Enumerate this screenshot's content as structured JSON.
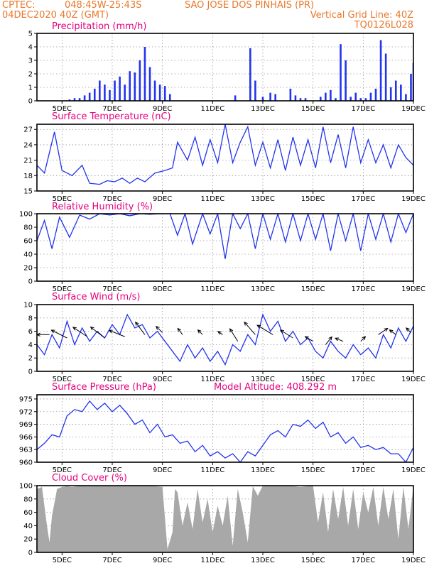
{
  "header": {
    "source": "CPTEC:",
    "coords": "048:45W-25:43S",
    "location": "SAO JOSE DOS PINHAIS (PR)",
    "date": "04DEC2020 40Z (GMT)",
    "grid_note": "Vertical Grid Line: 40Z",
    "code": "TQ0126L028"
  },
  "colors": {
    "header": "#e8782a",
    "title": "#e6007e",
    "line": "#2233ee",
    "bar": "#2233ee",
    "cloud": "#a8a8a8"
  },
  "chart_data": [
    {
      "type": "bar",
      "title": "Precipitation (mm/h)",
      "x_tick_labels": [
        "5DEC",
        "7DEC",
        "9DEC",
        "11DEC",
        "13DEC",
        "15DEC",
        "17DEC",
        "19DEC"
      ],
      "ylim": [
        0,
        5
      ],
      "y_ticks": [
        0,
        1,
        2,
        3,
        4,
        5
      ],
      "x_days": [
        5.3,
        5.5,
        5.7,
        5.9,
        6.1,
        6.3,
        6.5,
        6.7,
        6.9,
        7.1,
        7.3,
        7.5,
        7.7,
        7.9,
        8.1,
        8.3,
        8.5,
        8.7,
        8.9,
        9.1,
        9.3,
        11.9,
        12.5,
        12.7,
        13.0,
        13.3,
        13.5,
        14.1,
        14.3,
        14.5,
        14.7,
        15.3,
        15.5,
        15.7,
        15.9,
        16.1,
        16.3,
        16.5,
        16.7,
        16.9,
        17.1,
        17.3,
        17.5,
        17.7,
        17.9,
        18.1,
        18.3,
        18.5,
        18.7,
        18.9,
        19.0
      ],
      "values": [
        0.1,
        0.2,
        0.2,
        0.4,
        0.6,
        0.9,
        1.5,
        1.2,
        0.8,
        1.5,
        1.8,
        1.2,
        2.2,
        2.1,
        3.0,
        4.0,
        2.5,
        1.5,
        1.2,
        1.1,
        0.5,
        0.4,
        3.9,
        1.5,
        0.3,
        0.6,
        0.5,
        0.9,
        0.4,
        0.2,
        0.2,
        0.3,
        0.6,
        0.8,
        0.2,
        4.2,
        3.0,
        0.3,
        0.6,
        0.2,
        0.2,
        0.6,
        0.9,
        4.5,
        3.5,
        1.0,
        1.5,
        1.2,
        0.5,
        2.0,
        2.8
      ],
      "grid": true
    },
    {
      "type": "line",
      "title": "Surface Temperature (nC)",
      "x_tick_labels": [
        "5DEC",
        "7DEC",
        "9DEC",
        "11DEC",
        "13DEC",
        "15DEC",
        "17DEC",
        "19DEC"
      ],
      "ylim": [
        15,
        28
      ],
      "y_ticks": [
        15,
        18,
        21,
        24,
        27
      ],
      "x": [
        4.0,
        4.3,
        4.7,
        5.0,
        5.4,
        5.8,
        6.1,
        6.5,
        6.8,
        7.1,
        7.4,
        7.7,
        8.0,
        8.3,
        8.7,
        9.1,
        9.4,
        9.6,
        10.0,
        10.3,
        10.6,
        10.9,
        11.2,
        11.5,
        11.8,
        12.1,
        12.4,
        12.7,
        13.0,
        13.3,
        13.6,
        13.9,
        14.2,
        14.5,
        14.8,
        15.1,
        15.4,
        15.7,
        16.0,
        16.3,
        16.6,
        16.9,
        17.2,
        17.5,
        17.8,
        18.1,
        18.4,
        18.7,
        19.0
      ],
      "y": [
        20.0,
        18.5,
        26.5,
        19.0,
        18.0,
        20.0,
        16.5,
        16.3,
        17.0,
        16.8,
        17.5,
        16.5,
        17.5,
        16.8,
        18.5,
        19.0,
        19.5,
        24.5,
        21.0,
        25.5,
        20.0,
        25.0,
        20.5,
        28.0,
        20.5,
        24.5,
        27.5,
        20.0,
        24.5,
        19.5,
        25.0,
        19.0,
        25.5,
        20.0,
        25.0,
        19.5,
        27.5,
        20.5,
        26.0,
        19.5,
        27.5,
        20.5,
        25.0,
        20.5,
        24.0,
        19.5,
        24.0,
        21.5,
        20.0
      ],
      "grid": true
    },
    {
      "type": "line",
      "title": "Relative Humidity (%)",
      "x_tick_labels": [
        "5DEC",
        "7DEC",
        "9DEC",
        "11DEC",
        "13DEC",
        "15DEC",
        "17DEC",
        "19DEC"
      ],
      "ylim": [
        0,
        100
      ],
      "y_ticks": [
        0,
        20,
        40,
        60,
        80,
        100
      ],
      "x": [
        4.0,
        4.3,
        4.6,
        4.9,
        5.3,
        5.7,
        6.1,
        6.5,
        6.9,
        7.3,
        7.7,
        8.1,
        8.5,
        8.9,
        9.3,
        9.6,
        9.9,
        10.2,
        10.6,
        10.9,
        11.2,
        11.5,
        11.8,
        12.1,
        12.4,
        12.7,
        13.0,
        13.3,
        13.6,
        13.9,
        14.2,
        14.5,
        14.8,
        15.1,
        15.4,
        15.7,
        16.0,
        16.3,
        16.6,
        16.9,
        17.2,
        17.5,
        17.8,
        18.1,
        18.4,
        18.7,
        19.0
      ],
      "y": [
        60,
        90,
        48,
        95,
        65,
        98,
        92,
        100,
        98,
        100,
        97,
        100,
        99,
        100,
        100,
        68,
        100,
        55,
        100,
        70,
        100,
        33,
        100,
        78,
        100,
        48,
        100,
        62,
        100,
        58,
        100,
        60,
        100,
        62,
        100,
        45,
        100,
        60,
        100,
        45,
        100,
        62,
        100,
        58,
        100,
        72,
        100
      ],
      "grid": true
    },
    {
      "type": "line",
      "title": "Surface Wind (m/s)",
      "x_tick_labels": [
        "5DEC",
        "7DEC",
        "9DEC",
        "11DEC",
        "13DEC",
        "15DEC",
        "17DEC",
        "19DEC"
      ],
      "ylim": [
        0,
        10
      ],
      "y_ticks": [
        0,
        2,
        4,
        6,
        8,
        10
      ],
      "x": [
        4.0,
        4.3,
        4.6,
        4.9,
        5.2,
        5.5,
        5.8,
        6.1,
        6.4,
        6.7,
        7.0,
        7.3,
        7.6,
        7.9,
        8.2,
        8.5,
        8.8,
        9.1,
        9.4,
        9.7,
        10.0,
        10.3,
        10.6,
        10.9,
        11.2,
        11.5,
        11.8,
        12.1,
        12.4,
        12.7,
        13.0,
        13.3,
        13.6,
        13.9,
        14.2,
        14.5,
        14.8,
        15.1,
        15.4,
        15.7,
        16.0,
        16.3,
        16.6,
        16.9,
        17.2,
        17.5,
        17.8,
        18.1,
        18.4,
        18.7,
        19.0
      ],
      "y": [
        4.0,
        2.5,
        5.5,
        3.5,
        7.5,
        4.0,
        6.5,
        4.5,
        6.0,
        5.0,
        7.0,
        5.5,
        8.5,
        6.5,
        7.0,
        5.0,
        6.0,
        4.5,
        3.0,
        1.5,
        4.0,
        2.0,
        3.5,
        1.5,
        3.0,
        1.0,
        4.0,
        3.0,
        5.5,
        4.0,
        8.5,
        6.0,
        7.5,
        4.5,
        6.0,
        4.0,
        5.0,
        3.0,
        2.0,
        4.5,
        3.0,
        2.0,
        4.0,
        2.5,
        3.5,
        2.0,
        5.5,
        3.5,
        6.5,
        4.5,
        6.8
      ],
      "arrows": [
        {
          "x": 4.5,
          "y": 5.5,
          "u": -0.8,
          "v": 0.0
        },
        {
          "x": 5.2,
          "y": 5.0,
          "u": -1.0,
          "v": 0.5
        },
        {
          "x": 6.0,
          "y": 5.2,
          "u": -0.9,
          "v": 0.6
        },
        {
          "x": 6.7,
          "y": 5.0,
          "u": -0.9,
          "v": 0.7
        },
        {
          "x": 7.5,
          "y": 5.2,
          "u": -1.0,
          "v": 0.4
        },
        {
          "x": 8.3,
          "y": 5.5,
          "u": -0.6,
          "v": 0.8
        },
        {
          "x": 9.0,
          "y": 5.8,
          "u": -0.4,
          "v": 0.4
        },
        {
          "x": 9.8,
          "y": 5.5,
          "u": -0.3,
          "v": 0.4
        },
        {
          "x": 10.6,
          "y": 5.5,
          "u": -0.3,
          "v": 0.3
        },
        {
          "x": 11.4,
          "y": 5.5,
          "u": -0.3,
          "v": 0.2
        },
        {
          "x": 12.0,
          "y": 4.5,
          "u": -0.5,
          "v": 0.8
        },
        {
          "x": 12.7,
          "y": 5.5,
          "u": -0.7,
          "v": 0.8
        },
        {
          "x": 13.4,
          "y": 5.5,
          "u": -1.0,
          "v": 0.6
        },
        {
          "x": 14.2,
          "y": 5.0,
          "u": -0.8,
          "v": 0.5
        },
        {
          "x": 15.0,
          "y": 4.5,
          "u": -0.5,
          "v": 0.3
        },
        {
          "x": 15.5,
          "y": 4.0,
          "u": 0.4,
          "v": 0.5
        },
        {
          "x": 16.2,
          "y": 4.5,
          "u": -0.5,
          "v": 0.2
        },
        {
          "x": 16.9,
          "y": 4.5,
          "u": 0.3,
          "v": 0.3
        },
        {
          "x": 17.6,
          "y": 5.5,
          "u": 0.6,
          "v": 0.4
        },
        {
          "x": 18.3,
          "y": 5.5,
          "u": -0.4,
          "v": 0.3
        },
        {
          "x": 18.9,
          "y": 5.8,
          "u": -0.3,
          "v": 0.3
        }
      ],
      "grid": true
    },
    {
      "type": "line",
      "title": "Surface Pressure (hPa)",
      "annotation": "Model Altitude: 408.292 m",
      "x_tick_labels": [
        "5DEC",
        "7DEC",
        "9DEC",
        "11DEC",
        "13DEC",
        "15DEC",
        "17DEC",
        "19DEC"
      ],
      "ylim": [
        960,
        976
      ],
      "y_ticks": [
        960,
        963,
        966,
        969,
        972,
        975
      ],
      "x": [
        4.0,
        4.3,
        4.6,
        4.9,
        5.2,
        5.5,
        5.8,
        6.1,
        6.4,
        6.7,
        7.0,
        7.3,
        7.6,
        7.9,
        8.2,
        8.5,
        8.8,
        9.1,
        9.4,
        9.7,
        10.0,
        10.3,
        10.6,
        10.9,
        11.2,
        11.5,
        11.8,
        12.1,
        12.4,
        12.7,
        13.0,
        13.3,
        13.6,
        13.9,
        14.2,
        14.5,
        14.8,
        15.1,
        15.4,
        15.7,
        16.0,
        16.3,
        16.6,
        16.9,
        17.2,
        17.5,
        17.8,
        18.1,
        18.4,
        18.7,
        19.0
      ],
      "y": [
        963.0,
        964.5,
        966.5,
        966.0,
        971.0,
        972.5,
        972.0,
        974.5,
        972.5,
        974.0,
        972.0,
        973.5,
        971.5,
        969.0,
        970.0,
        967.0,
        969.0,
        966.0,
        966.5,
        964.5,
        965.0,
        962.5,
        964.0,
        961.5,
        962.5,
        961.0,
        962.0,
        960.0,
        962.5,
        961.5,
        964.0,
        966.5,
        967.5,
        966.0,
        969.0,
        968.5,
        970.0,
        968.0,
        969.5,
        966.0,
        967.0,
        964.5,
        966.0,
        963.5,
        964.0,
        963.0,
        963.5,
        962.0,
        962.0,
        960.0,
        963.5
      ],
      "grid": true
    },
    {
      "type": "area",
      "title": "Cloud Cover (%)",
      "x_tick_labels": [
        "5DEC",
        "7DEC",
        "9DEC",
        "11DEC",
        "13DEC",
        "15DEC",
        "17DEC",
        "19DEC"
      ],
      "ylim": [
        0,
        100
      ],
      "y_ticks": [
        0,
        20,
        40,
        60,
        80,
        100
      ],
      "x": [
        4.0,
        4.2,
        4.4,
        4.5,
        4.6,
        4.8,
        5.0,
        5.2,
        5.4,
        5.6,
        5.8,
        6.0,
        6.5,
        7.0,
        7.5,
        8.0,
        8.5,
        9.0,
        9.2,
        9.4,
        9.5,
        9.6,
        9.8,
        10.0,
        10.2,
        10.4,
        10.6,
        10.8,
        11.0,
        11.2,
        11.4,
        11.6,
        11.8,
        12.0,
        12.2,
        12.4,
        12.6,
        12.8,
        13.0,
        13.5,
        14.0,
        14.5,
        15.0,
        15.2,
        15.4,
        15.6,
        15.8,
        16.0,
        16.2,
        16.4,
        16.6,
        16.8,
        17.0,
        17.2,
        17.4,
        17.6,
        17.8,
        18.0,
        18.2,
        18.4,
        18.6,
        18.8,
        19.0
      ],
      "y": [
        95,
        98,
        40,
        15,
        55,
        95,
        98,
        99,
        98,
        99,
        100,
        100,
        100,
        100,
        100,
        100,
        100,
        98,
        5,
        30,
        95,
        90,
        40,
        75,
        35,
        95,
        45,
        80,
        30,
        70,
        40,
        85,
        10,
        95,
        60,
        15,
        99,
        85,
        100,
        100,
        100,
        98,
        100,
        45,
        90,
        30,
        95,
        50,
        98,
        40,
        95,
        35,
        90,
        60,
        98,
        40,
        98,
        50,
        95,
        20,
        98,
        35,
        100
      ],
      "grid": true
    }
  ]
}
